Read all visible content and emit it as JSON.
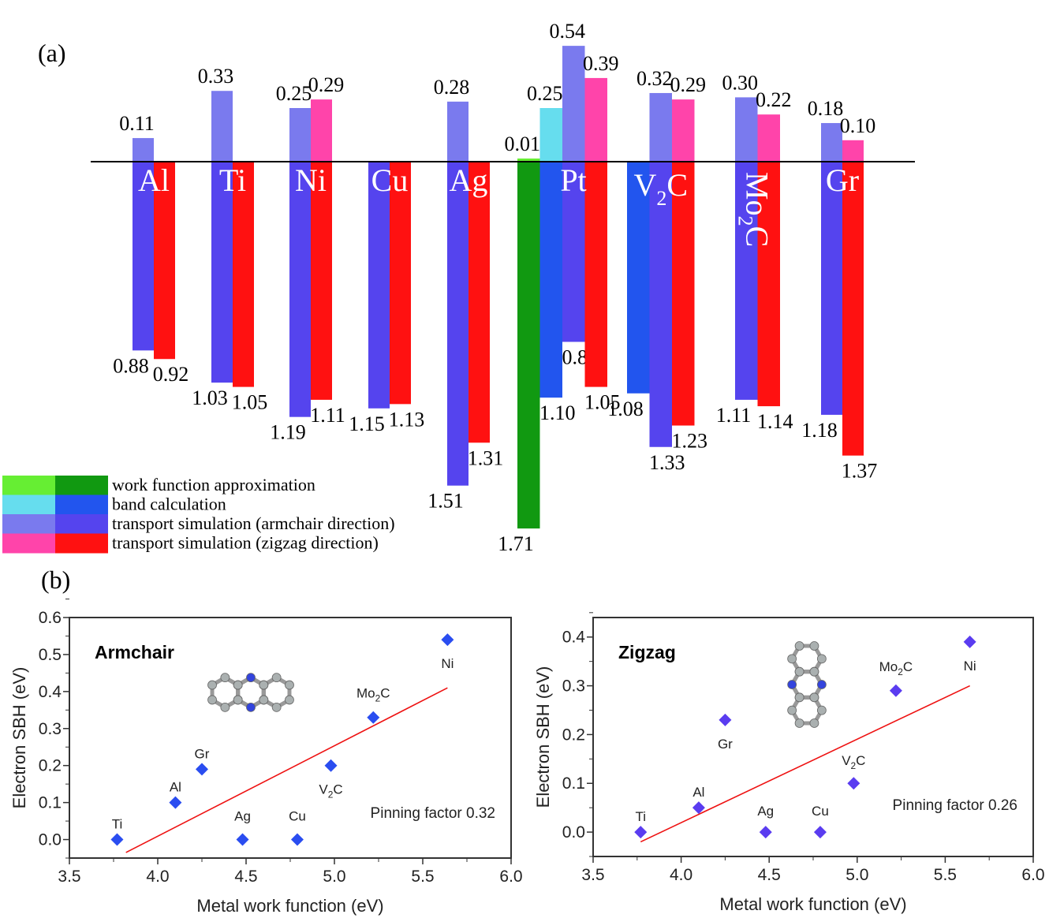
{
  "chart_data": [
    {
      "type": "bar",
      "panel_label": "(a)",
      "categories": [
        "Al",
        "Ti",
        "Ni",
        "Cu",
        "Ag",
        "Pt",
        "V2C",
        "Mo2C",
        "Gr"
      ],
      "category_labels": [
        {
          "main": "Al",
          "sub": ""
        },
        {
          "main": "Ti",
          "sub": ""
        },
        {
          "main": "Ni",
          "sub": ""
        },
        {
          "main": "Cu",
          "sub": ""
        },
        {
          "main": "Ag",
          "sub": ""
        },
        {
          "main": "Pt",
          "sub": ""
        },
        {
          "main": "V",
          "sub": "2",
          "tail": "C"
        },
        {
          "main": "Mo",
          "sub": "2",
          "tail": "C",
          "rotated": true
        },
        {
          "main": "Gr",
          "sub": ""
        }
      ],
      "legend": [
        {
          "name": "work function approximation",
          "colors": [
            "#66ee33",
            "#119911"
          ]
        },
        {
          "name": "band calculation",
          "colors": [
            "#66ddee",
            "#2255ee"
          ]
        },
        {
          "name": "transport simulation (armchair direction)",
          "colors": [
            "#7a7aee",
            "#5544ee"
          ]
        },
        {
          "name": "transport simulation (zigzag direction)",
          "colors": [
            "#ff44aa",
            "#ff1111"
          ]
        }
      ],
      "legend_position": "bottom-left",
      "groups": [
        {
          "metal": "Al",
          "bars": [
            {
              "series": 2,
              "up": 0.11,
              "down": 0.88
            },
            {
              "series": 3,
              "up": null,
              "down": 0.92
            }
          ]
        },
        {
          "metal": "Ti",
          "bars": [
            {
              "series": 2,
              "up": 0.33,
              "down": 1.03
            },
            {
              "series": 3,
              "up": null,
              "down": 1.05
            }
          ]
        },
        {
          "metal": "Ni",
          "bars": [
            {
              "series": 2,
              "up": 0.25,
              "down": 1.19
            },
            {
              "series": 3,
              "up": 0.29,
              "down": 1.11
            }
          ]
        },
        {
          "metal": "Cu",
          "bars": [
            {
              "series": 2,
              "up": null,
              "down": 1.15
            },
            {
              "series": 3,
              "up": null,
              "down": 1.13
            }
          ]
        },
        {
          "metal": "Ag",
          "bars": [
            {
              "series": 2,
              "up": 0.28,
              "down": 1.51
            },
            {
              "series": 3,
              "up": null,
              "down": 1.31
            }
          ]
        },
        {
          "metal": "Pt",
          "bars": [
            {
              "series": 0,
              "up": 0.01,
              "down": 1.71
            },
            {
              "series": 1,
              "up": 0.25,
              "down": 1.1
            },
            {
              "series": 2,
              "up": 0.54,
              "down": 0.84
            },
            {
              "series": 3,
              "up": 0.39,
              "down": 1.05
            }
          ]
        },
        {
          "metal": "V2C",
          "bars": [
            {
              "series": 1,
              "up": null,
              "down": 1.08
            },
            {
              "series": 2,
              "up": 0.32,
              "down": 1.33
            },
            {
              "series": 3,
              "up": 0.29,
              "down": 1.23
            }
          ]
        },
        {
          "metal": "Mo2C",
          "bars": [
            {
              "series": 2,
              "up": 0.3,
              "down": 1.11
            },
            {
              "series": 3,
              "up": 0.22,
              "down": 1.14
            }
          ]
        },
        {
          "metal": "Gr",
          "bars": [
            {
              "series": 2,
              "up": 0.18,
              "down": 1.18
            },
            {
              "series": 3,
              "up": 0.1,
              "down": 1.37
            }
          ]
        }
      ]
    },
    {
      "type": "scatter",
      "panel_label": "(b)",
      "title": "Armchair",
      "xlabel": "Metal work function (eV)",
      "ylabel": "Electron SBH (eV)",
      "xlim": [
        3.5,
        6.0
      ],
      "ylim": [
        -0.05,
        0.6
      ],
      "xticks": [
        "3.5",
        "4.0",
        "4.5",
        "5.0",
        "5.5",
        "6.0"
      ],
      "yticks": [
        "0.0",
        "0.1",
        "0.2",
        "0.3",
        "0.4",
        "0.5",
        "0.6"
      ],
      "marker_color": "#2a4df0",
      "fit_color": "#ee1111",
      "annotation": "Pinning factor 0.32",
      "points": [
        {
          "label": "Ti",
          "x": 3.77,
          "y": 0.0
        },
        {
          "label": "Al",
          "x": 4.1,
          "y": 0.1
        },
        {
          "label": "Gr",
          "x": 4.25,
          "y": 0.19
        },
        {
          "label": "Ag",
          "x": 4.48,
          "y": 0.0
        },
        {
          "label": "Cu",
          "x": 4.79,
          "y": 0.0
        },
        {
          "label": "V2C",
          "x": 4.98,
          "y": 0.2
        },
        {
          "label": "Mo2C",
          "x": 5.22,
          "y": 0.33
        },
        {
          "label": "Ni",
          "x": 5.64,
          "y": 0.54
        }
      ],
      "fit_line": [
        [
          3.82,
          -0.035
        ],
        [
          5.64,
          0.41
        ]
      ]
    },
    {
      "type": "scatter",
      "title": "Zigzag",
      "xlabel": "Metal work function (eV)",
      "ylabel": "Electron SBH (eV)",
      "xlim": [
        3.5,
        6.0
      ],
      "ylim": [
        -0.05,
        0.44
      ],
      "xticks": [
        "3.5",
        "4.0",
        "4.5",
        "5.0",
        "5.5",
        "6.0"
      ],
      "yticks": [
        "0.0",
        "0.1",
        "0.2",
        "0.3",
        "0.4"
      ],
      "marker_color": "#5a3cf0",
      "fit_color": "#ee1111",
      "annotation": "Pinning factor 0.26",
      "points": [
        {
          "label": "Ti",
          "x": 3.77,
          "y": 0.0
        },
        {
          "label": "Al",
          "x": 4.1,
          "y": 0.05
        },
        {
          "label": "Gr",
          "x": 4.25,
          "y": 0.23
        },
        {
          "label": "Ag",
          "x": 4.48,
          "y": 0.0
        },
        {
          "label": "Cu",
          "x": 4.79,
          "y": 0.0
        },
        {
          "label": "V2C",
          "x": 4.98,
          "y": 0.1
        },
        {
          "label": "Mo2C",
          "x": 5.22,
          "y": 0.29
        },
        {
          "label": "Ni",
          "x": 5.64,
          "y": 0.39
        }
      ],
      "fit_line": [
        [
          3.77,
          -0.02
        ],
        [
          5.64,
          0.3
        ]
      ]
    }
  ]
}
